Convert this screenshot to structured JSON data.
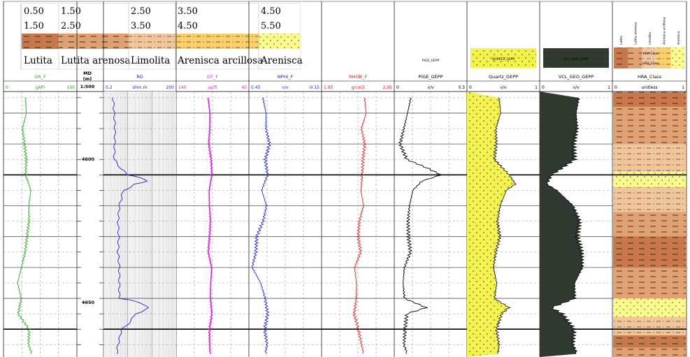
{
  "lithology_legend": {
    "rows": [
      {
        "name": "Lutita",
        "min": "0.50",
        "max": "1.50",
        "color": "#c8784a",
        "pattern": "shale"
      },
      {
        "name": "Lutita arenosa",
        "min": "1.50",
        "max": "2.50",
        "color": "#e0a070",
        "pattern": "sandy-shale"
      },
      {
        "name": "Limolita",
        "min": "2.50",
        "max": "3.50",
        "color": "#f2c59a",
        "pattern": "siltstone"
      },
      {
        "name": "Arenisca arcillosa",
        "min": "3.50",
        "max": "4.50",
        "color": "#fbcf6a",
        "pattern": "shaly-sand"
      },
      {
        "name": "Arenisca",
        "min": "4.50",
        "max": "5.50",
        "color": "#fafa8c",
        "pattern": "sand"
      }
    ]
  },
  "depth_track": {
    "header": "MD\n(m)",
    "scale": "1:500",
    "labels": [
      "4600",
      "4650"
    ]
  },
  "tracks": [
    {
      "id": "gr",
      "title": "GR_F",
      "unit": "gAPI",
      "min": "0",
      "max": "100",
      "color": "#22aa22"
    },
    {
      "id": "rd",
      "title": "RD",
      "unit": "ohm.m",
      "min": "0.2",
      "max": "200",
      "color": "#2222cc"
    },
    {
      "id": "dt",
      "title": "DT_F",
      "unit": "us/ft",
      "min": "140",
      "max": "40",
      "color": "#e020e0"
    },
    {
      "id": "nphi",
      "title": "NPHI_F",
      "unit": "v/v",
      "min": "0.45",
      "max": "-0.15",
      "color": "#2222cc"
    },
    {
      "id": "rhob",
      "title": "RHOB_F",
      "unit": "g/cm3",
      "min": "1.95",
      "max": "2.95",
      "color": "#e02020"
    },
    {
      "id": "pige",
      "title": "PIGE_GEPP",
      "unit": "v/v",
      "min": "0",
      "max": "0.3",
      "color": "#000000",
      "header_label": "PIGE_GEPP"
    },
    {
      "id": "quartz",
      "title": "Quartz_GEPP",
      "unit": "v/v",
      "min": "0",
      "max": "1",
      "color": "#000000",
      "header_label": "QUARTZ_GEPP"
    },
    {
      "id": "vcl",
      "title": "VCL_GEO_GEPP",
      "unit": "v/v",
      "min": "0",
      "max": "1",
      "color": "#000000",
      "header_label": "VCL_GEO_GEPP"
    },
    {
      "id": "hra",
      "title": "HRA_Class",
      "unit": "unitless",
      "min": "0",
      "max": "1",
      "color": "#000000",
      "header_labels": [
        "Lutita",
        "Lutita arenosa",
        "Limolita",
        "Arenisca arcillosa",
        "Arenisca"
      ],
      "box_labels": [
        "HRA Class",
        "HRA_Class"
      ]
    }
  ],
  "chart_data": {
    "type": "line",
    "depth_axis": {
      "unit": "m",
      "range": [
        4573,
        4659
      ],
      "labeled_ticks": [
        4600,
        4650
      ]
    },
    "series": [
      {
        "name": "GR_F",
        "unit": "gAPI",
        "scale": [
          0,
          100
        ],
        "logarithmic": false,
        "depths": [
          4575,
          4580,
          4585,
          4590,
          4595,
          4600,
          4605,
          4610,
          4615,
          4620,
          4625,
          4630,
          4635,
          4640,
          4645,
          4650,
          4655,
          4658
        ],
        "values": [
          28,
          30,
          26,
          30,
          33,
          32,
          38,
          34,
          33,
          30,
          28,
          24,
          20,
          26,
          22,
          36,
          34,
          38
        ]
      },
      {
        "name": "RD",
        "unit": "ohm.m",
        "scale": [
          0.2,
          200
        ],
        "logarithmic": true,
        "depths": [
          4575,
          4580,
          4585,
          4590,
          4595,
          4598,
          4600,
          4602,
          4603,
          4605,
          4610,
          4615,
          4620,
          4625,
          4630,
          4635,
          4640,
          4642,
          4643,
          4645,
          4650,
          4655,
          4658
        ],
        "values": [
          0.5,
          0.55,
          0.6,
          0.58,
          0.55,
          1.0,
          2.0,
          12,
          4.0,
          1.3,
          0.9,
          0.8,
          0.85,
          0.8,
          0.9,
          0.9,
          0.9,
          8.0,
          15,
          4.0,
          1.1,
          0.8,
          0.7
        ]
      },
      {
        "name": "DT_F",
        "unit": "us/ft",
        "scale": [
          140,
          40
        ],
        "logarithmic": false,
        "depths": [
          4575,
          4580,
          4585,
          4590,
          4595,
          4600,
          4605,
          4610,
          4615,
          4620,
          4625,
          4630,
          4635,
          4640,
          4645,
          4650,
          4655,
          4658
        ],
        "values": [
          95,
          93,
          94,
          96,
          93,
          92,
          95,
          94,
          92,
          93,
          95,
          91,
          93,
          94,
          92,
          95,
          94,
          93
        ]
      },
      {
        "name": "NPHI_F",
        "unit": "v/v",
        "scale": [
          0.45,
          -0.15
        ],
        "logarithmic": false,
        "depths": [
          4575,
          4580,
          4585,
          4590,
          4595,
          4600,
          4605,
          4610,
          4615,
          4620,
          4625,
          4630,
          4635,
          4640,
          4645,
          4650,
          4655,
          4658
        ],
        "values": [
          0.32,
          0.3,
          0.31,
          0.29,
          0.33,
          0.31,
          0.35,
          0.3,
          0.32,
          0.37,
          0.38,
          0.42,
          0.36,
          0.33,
          0.31,
          0.33,
          0.3,
          0.31
        ]
      },
      {
        "name": "RHOB_F",
        "unit": "g/cm3",
        "scale": [
          1.95,
          2.95
        ],
        "logarithmic": false,
        "depths": [
          4575,
          4580,
          4585,
          4590,
          4595,
          4600,
          4605,
          4610,
          4615,
          4620,
          4625,
          4630,
          4635,
          4640,
          4645,
          4650,
          4655,
          4658
        ],
        "values": [
          2.52,
          2.55,
          2.5,
          2.56,
          2.54,
          2.53,
          2.5,
          2.52,
          2.45,
          2.43,
          2.47,
          2.4,
          2.44,
          2.45,
          2.42,
          2.47,
          2.5,
          2.52
        ]
      },
      {
        "name": "PIGE_GEPP",
        "unit": "v/v",
        "scale": [
          0,
          0.3
        ],
        "logarithmic": false,
        "depths": [
          4575,
          4580,
          4585,
          4590,
          4595,
          4598,
          4600,
          4602,
          4605,
          4610,
          4615,
          4620,
          4625,
          4630,
          4635,
          4640,
          4643,
          4645,
          4650,
          4655,
          4658
        ],
        "values": [
          0.06,
          0.05,
          0.04,
          0.03,
          0.06,
          0.15,
          0.2,
          0.12,
          0.08,
          0.06,
          0.05,
          0.05,
          0.06,
          0.04,
          0.04,
          0.05,
          0.14,
          0.06,
          0.05,
          0.04,
          0.05
        ]
      },
      {
        "name": "Quartz_GEPP",
        "unit": "v/v",
        "scale": [
          0,
          1
        ],
        "logarithmic": false,
        "fill": "#f2f250",
        "depths": [
          4575,
          4580,
          4585,
          4590,
          4595,
          4600,
          4603,
          4605,
          4610,
          4615,
          4620,
          4625,
          4630,
          4635,
          4640,
          4643,
          4645,
          4650,
          4655,
          4658
        ],
        "values": [
          0.42,
          0.45,
          0.4,
          0.42,
          0.4,
          0.6,
          0.68,
          0.55,
          0.45,
          0.4,
          0.43,
          0.38,
          0.36,
          0.42,
          0.4,
          0.6,
          0.5,
          0.42,
          0.44,
          0.42
        ]
      },
      {
        "name": "VCL_GEO_GEPP",
        "unit": "v/v",
        "scale": [
          0,
          1
        ],
        "logarithmic": false,
        "fill": "#303a30",
        "depths": [
          4575,
          4580,
          4585,
          4590,
          4595,
          4600,
          4603,
          4605,
          4610,
          4615,
          4620,
          4625,
          4630,
          4635,
          4640,
          4643,
          4645,
          4650,
          4655,
          4658
        ],
        "values": [
          0.5,
          0.48,
          0.52,
          0.5,
          0.52,
          0.2,
          0.12,
          0.25,
          0.45,
          0.52,
          0.48,
          0.55,
          0.58,
          0.5,
          0.52,
          0.2,
          0.35,
          0.5,
          0.46,
          0.5
        ]
      },
      {
        "name": "HRA_Class",
        "unit": "unitless",
        "type": "lithology-column",
        "intervals": [
          {
            "top": 4573,
            "base": 4578,
            "class": "Lutita"
          },
          {
            "top": 4578,
            "base": 4590,
            "class": "Lutita arenosa"
          },
          {
            "top": 4590,
            "base": 4599,
            "class": "Limolita"
          },
          {
            "top": 4599,
            "base": 4604,
            "class": "Arenisca"
          },
          {
            "top": 4604,
            "base": 4612,
            "class": "Limolita"
          },
          {
            "top": 4612,
            "base": 4620,
            "class": "Lutita arenosa"
          },
          {
            "top": 4620,
            "base": 4630,
            "class": "Lutita"
          },
          {
            "top": 4630,
            "base": 4640,
            "class": "Lutita arenosa"
          },
          {
            "top": 4640,
            "base": 4646,
            "class": "Arenisca"
          },
          {
            "top": 4646,
            "base": 4652,
            "class": "Limolita"
          },
          {
            "top": 4652,
            "base": 4656,
            "class": "Lutita"
          },
          {
            "top": 4656,
            "base": 4659,
            "class": "Lutita arenosa"
          }
        ]
      }
    ]
  }
}
